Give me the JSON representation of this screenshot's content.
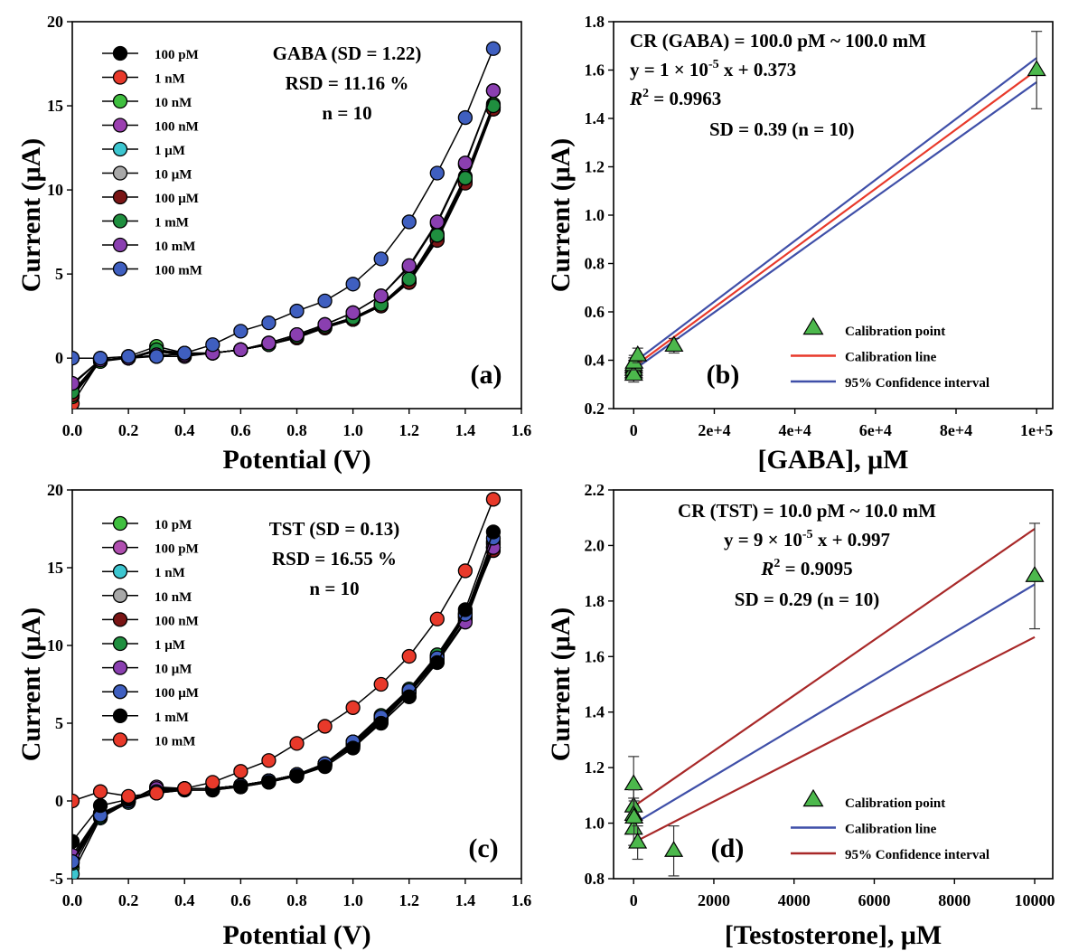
{
  "chart_data": [
    {
      "id": "a",
      "type": "line",
      "panel_label": "(a)",
      "xlabel": "Potential (V)",
      "ylabel": "Current (μA)",
      "xlim": [
        0,
        1.6
      ],
      "ylim": [
        -3,
        20
      ],
      "xticks": [
        0.0,
        0.2,
        0.4,
        0.6,
        0.8,
        1.0,
        1.2,
        1.4,
        1.6
      ],
      "xtick_labels": [
        "0.0",
        "0.2",
        "0.4",
        "0.6",
        "0.8",
        "1.0",
        "1.2",
        "1.4",
        "1.6"
      ],
      "yticks": [
        0,
        5,
        10,
        15,
        20
      ],
      "ytick_labels": [
        "0",
        "5",
        "10",
        "15",
        "20"
      ],
      "legend_position": "top-left",
      "annotations": [
        "GABA (SD = 1.22)",
        "RSD = 11.16 %",
        "n = 10"
      ],
      "x": [
        0.0,
        0.1,
        0.2,
        0.3,
        0.4,
        0.5,
        0.6,
        0.7,
        0.8,
        0.9,
        1.0,
        1.1,
        1.2,
        1.3,
        1.4,
        1.5
      ],
      "series": [
        {
          "name": "100 pM",
          "color": "#000000",
          "values": [
            -2.2,
            -0.2,
            0.0,
            0.5,
            0.3,
            0.3,
            0.5,
            0.8,
            1.2,
            1.8,
            2.3,
            3.1,
            4.5,
            7.0,
            10.5,
            14.8
          ]
        },
        {
          "name": "1 nM",
          "color": "#e8392a",
          "values": [
            -2.7,
            -0.1,
            0.0,
            0.4,
            0.2,
            0.3,
            0.5,
            0.8,
            1.3,
            1.9,
            2.4,
            3.2,
            4.6,
            7.2,
            10.6,
            14.9
          ]
        },
        {
          "name": "10 nM",
          "color": "#3fbf3f",
          "values": [
            -2.3,
            -0.2,
            0.1,
            0.7,
            0.3,
            0.3,
            0.5,
            0.8,
            1.3,
            1.8,
            2.3,
            3.2,
            4.7,
            7.4,
            10.8,
            15.1
          ]
        },
        {
          "name": "100 nM",
          "color": "#9b3fb0",
          "values": [
            -1.6,
            -0.1,
            0.0,
            0.1,
            0.1,
            0.3,
            0.5,
            0.9,
            1.4,
            2.0,
            2.7,
            3.7,
            5.4,
            8.0,
            11.5,
            15.9
          ]
        },
        {
          "name": "1 μM",
          "color": "#3cc6d0",
          "values": [
            -2.0,
            -0.1,
            0.0,
            0.4,
            0.2,
            0.3,
            0.5,
            0.8,
            1.3,
            1.9,
            2.3,
            3.1,
            4.5,
            7.1,
            10.5,
            14.9
          ]
        },
        {
          "name": "10 μM",
          "color": "#a8a8a8",
          "values": [
            -2.1,
            -0.1,
            0.0,
            0.4,
            0.2,
            0.3,
            0.5,
            0.8,
            1.3,
            1.9,
            2.4,
            3.2,
            4.6,
            7.1,
            10.6,
            14.9
          ]
        },
        {
          "name": "100 μM",
          "color": "#7a1515",
          "values": [
            -2.2,
            -0.1,
            0.0,
            0.5,
            0.2,
            0.3,
            0.5,
            0.8,
            1.2,
            1.8,
            2.3,
            3.1,
            4.5,
            7.0,
            10.4,
            14.8
          ]
        },
        {
          "name": "1 mM",
          "color": "#1f8f3f",
          "values": [
            -2.0,
            -0.1,
            0.0,
            0.5,
            0.3,
            0.3,
            0.5,
            0.8,
            1.3,
            1.9,
            2.4,
            3.2,
            4.7,
            7.3,
            10.7,
            15.0
          ]
        },
        {
          "name": "10 mM",
          "color": "#8a3fb0",
          "values": [
            -1.5,
            -0.1,
            0.0,
            0.2,
            0.2,
            0.3,
            0.5,
            0.9,
            1.4,
            2.0,
            2.7,
            3.7,
            5.5,
            8.1,
            11.6,
            15.9
          ]
        },
        {
          "name": "100 mM",
          "color": "#3f5fc0",
          "values": [
            0.0,
            0.0,
            0.1,
            0.1,
            0.3,
            0.8,
            1.6,
            2.1,
            2.8,
            3.4,
            4.4,
            5.9,
            8.1,
            11.0,
            14.3,
            18.4
          ]
        }
      ]
    },
    {
      "id": "b",
      "type": "scatter",
      "panel_label": "(b)",
      "xlabel": "[GABA], μM",
      "ylabel": "Current (μA)",
      "xlim": [
        -5000,
        104000
      ],
      "ylim": [
        0.2,
        1.8
      ],
      "xticks": [
        0,
        20000,
        40000,
        60000,
        80000,
        100000
      ],
      "xtick_labels": [
        "0",
        "2e+4",
        "4e+4",
        "6e+4",
        "8e+4",
        "1e+5"
      ],
      "yticks": [
        0.2,
        0.4,
        0.6,
        0.8,
        1.0,
        1.2,
        1.4,
        1.6,
        1.8
      ],
      "ytick_labels": [
        "0.2",
        "0.4",
        "0.6",
        "0.8",
        "1.0",
        "1.2",
        "1.4",
        "1.6",
        "1.8"
      ],
      "legend_position": "bottom-right",
      "legend": [
        "Calibration point",
        "Calibration line",
        "95% Confidence interval"
      ],
      "annotations": [
        "CR (GABA) = 100.0 pM ~ 100.0 mM",
        "y = 1 × 10",
        "-5",
        " x + 0.373",
        "R",
        "2",
        " = 0.9963",
        "SD = 0.39 (n = 10)"
      ],
      "points": [
        {
          "x": 0,
          "y": 0.35,
          "err": 0.03
        },
        {
          "x": 0,
          "y": 0.37,
          "err": 0.03
        },
        {
          "x": 0,
          "y": 0.36,
          "err": 0.03
        },
        {
          "x": 0,
          "y": 0.38,
          "err": 0.03
        },
        {
          "x": 0,
          "y": 0.34,
          "err": 0.03
        },
        {
          "x": 100,
          "y": 0.39,
          "err": 0.03
        },
        {
          "x": 1000,
          "y": 0.42,
          "err": 0.03
        },
        {
          "x": 10000,
          "y": 0.46,
          "err": 0.03
        },
        {
          "x": 100000,
          "y": 1.6,
          "err": 0.16
        }
      ],
      "calibration_line": {
        "color": "#e8392a",
        "x": [
          0,
          100000
        ],
        "y": [
          0.373,
          1.6
        ]
      },
      "confidence_lines": [
        {
          "color": "#3f4fa8",
          "x": [
            0,
            100000
          ],
          "y": [
            0.39,
            1.65
          ]
        },
        {
          "color": "#3f4fa8",
          "x": [
            0,
            100000
          ],
          "y": [
            0.36,
            1.55
          ]
        }
      ],
      "marker_color": "#4cb84c"
    },
    {
      "id": "c",
      "type": "line",
      "panel_label": "(c)",
      "xlabel": "Potential (V)",
      "ylabel": "Current (μA)",
      "xlim": [
        0,
        1.6
      ],
      "ylim": [
        -5,
        20
      ],
      "xticks": [
        0.0,
        0.2,
        0.4,
        0.6,
        0.8,
        1.0,
        1.2,
        1.4,
        1.6
      ],
      "xtick_labels": [
        "0.0",
        "0.2",
        "0.4",
        "0.6",
        "0.8",
        "1.0",
        "1.2",
        "1.4",
        "1.6"
      ],
      "yticks": [
        -5,
        0,
        5,
        10,
        15,
        20
      ],
      "ytick_labels": [
        "-5",
        "0",
        "5",
        "10",
        "15",
        "20"
      ],
      "legend_position": "top-left",
      "annotations": [
        "TST (SD = 0.13)",
        "RSD = 16.55 %",
        "n = 10"
      ],
      "x": [
        0.0,
        0.1,
        0.2,
        0.3,
        0.4,
        0.5,
        0.6,
        0.7,
        0.8,
        0.9,
        1.0,
        1.1,
        1.2,
        1.3,
        1.4,
        1.5
      ],
      "series": [
        {
          "name": "10 pM",
          "color": "#3fbf3f",
          "values": [
            -4.3,
            -1.0,
            0.0,
            0.6,
            0.8,
            0.8,
            1.0,
            1.3,
            1.7,
            2.4,
            3.6,
            5.2,
            7.0,
            9.3,
            11.8,
            16.3
          ]
        },
        {
          "name": "100 pM",
          "color": "#b04fb0",
          "values": [
            -3.7,
            -0.8,
            0.0,
            0.9,
            0.8,
            0.8,
            1.0,
            1.3,
            1.7,
            2.3,
            3.6,
            5.1,
            6.9,
            9.0,
            11.6,
            16.6
          ]
        },
        {
          "name": "1 nM",
          "color": "#3cc6d0",
          "values": [
            -4.7,
            -1.1,
            -0.1,
            0.7,
            0.8,
            0.8,
            1.0,
            1.3,
            1.7,
            2.3,
            3.7,
            5.3,
            7.1,
            9.2,
            11.9,
            16.7
          ]
        },
        {
          "name": "10 nM",
          "color": "#a8a8a8",
          "values": [
            -4.0,
            -1.0,
            0.0,
            0.6,
            0.8,
            0.8,
            1.0,
            1.3,
            1.7,
            2.4,
            3.8,
            5.4,
            7.1,
            9.3,
            12.0,
            16.5
          ]
        },
        {
          "name": "100 nM",
          "color": "#7a1515",
          "values": [
            -3.9,
            -0.8,
            0.0,
            0.5,
            0.7,
            0.7,
            0.9,
            1.2,
            1.6,
            2.3,
            3.6,
            5.2,
            7.0,
            9.1,
            11.8,
            16.1
          ]
        },
        {
          "name": "1 μM",
          "color": "#1f8f3f",
          "values": [
            -4.0,
            -1.0,
            0.0,
            0.6,
            0.8,
            0.8,
            1.0,
            1.3,
            1.7,
            2.4,
            3.8,
            5.5,
            7.2,
            9.4,
            12.1,
            16.3
          ]
        },
        {
          "name": "10 μM",
          "color": "#8a3fb0",
          "values": [
            -3.5,
            -0.8,
            0.0,
            0.8,
            0.8,
            0.8,
            1.0,
            1.3,
            1.7,
            2.3,
            3.5,
            5.0,
            6.7,
            8.9,
            11.5,
            16.3
          ]
        },
        {
          "name": "100 μM",
          "color": "#3f5fc0",
          "values": [
            -3.9,
            -0.9,
            0.0,
            0.6,
            0.8,
            0.8,
            1.0,
            1.3,
            1.7,
            2.4,
            3.8,
            5.4,
            7.1,
            9.2,
            12.0,
            16.9
          ]
        },
        {
          "name": "1 mM",
          "color": "#000000",
          "values": [
            -2.6,
            -0.3,
            0.1,
            0.5,
            0.7,
            0.7,
            0.9,
            1.2,
            1.6,
            2.2,
            3.4,
            5.0,
            6.7,
            8.9,
            12.3,
            17.3
          ]
        },
        {
          "name": "10 mM",
          "color": "#e8392a",
          "values": [
            0.0,
            0.6,
            0.3,
            0.5,
            0.8,
            1.2,
            1.9,
            2.6,
            3.7,
            4.8,
            6.0,
            7.5,
            9.3,
            11.7,
            14.8,
            19.4
          ]
        }
      ]
    },
    {
      "id": "d",
      "type": "scatter",
      "panel_label": "(d)",
      "xlabel": "[Testosterone], μM",
      "ylabel": "Current (μA)",
      "xlim": [
        -500,
        10450
      ],
      "ylim": [
        0.8,
        2.2
      ],
      "xticks": [
        0,
        2000,
        4000,
        6000,
        8000,
        10000
      ],
      "xtick_labels": [
        "0",
        "2000",
        "4000",
        "6000",
        "8000",
        "10000"
      ],
      "yticks": [
        0.8,
        1.0,
        1.2,
        1.4,
        1.6,
        1.8,
        2.0,
        2.2
      ],
      "ytick_labels": [
        "0.8",
        "1.0",
        "1.2",
        "1.4",
        "1.6",
        "1.8",
        "2.0",
        "2.2"
      ],
      "legend_position": "bottom-right",
      "legend": [
        "Calibration point",
        "Calibration line",
        "95% Confidence interval"
      ],
      "annotations": [
        "CR (TST) = 10.0 pM ~ 10.0 mM",
        "y = 9 × 10",
        "-5",
        " x + 0.997",
        "R",
        "2",
        " = 0.9095",
        "SD = 0.29 (n = 10)"
      ],
      "points": [
        {
          "x": 0,
          "y": 1.14,
          "err": 0.1
        },
        {
          "x": 0,
          "y": 1.06,
          "err": 0.06
        },
        {
          "x": 0,
          "y": 1.03,
          "err": 0.06
        },
        {
          "x": 0,
          "y": 0.98,
          "err": 0.06
        },
        {
          "x": 10,
          "y": 1.02,
          "err": 0.06
        },
        {
          "x": 100,
          "y": 0.93,
          "err": 0.06
        },
        {
          "x": 1000,
          "y": 0.9,
          "err": 0.09
        },
        {
          "x": 10000,
          "y": 1.89,
          "err": 0.19
        }
      ],
      "calibration_line": {
        "color": "#3f4fa8",
        "x": [
          0,
          10000
        ],
        "y": [
          0.997,
          1.86
        ]
      },
      "confidence_lines": [
        {
          "color": "#a82828",
          "x": [
            0,
            10000
          ],
          "y": [
            1.06,
            2.06
          ]
        },
        {
          "color": "#a82828",
          "x": [
            0,
            10000
          ],
          "y": [
            0.93,
            1.67
          ]
        }
      ],
      "marker_color": "#4cb84c"
    }
  ]
}
